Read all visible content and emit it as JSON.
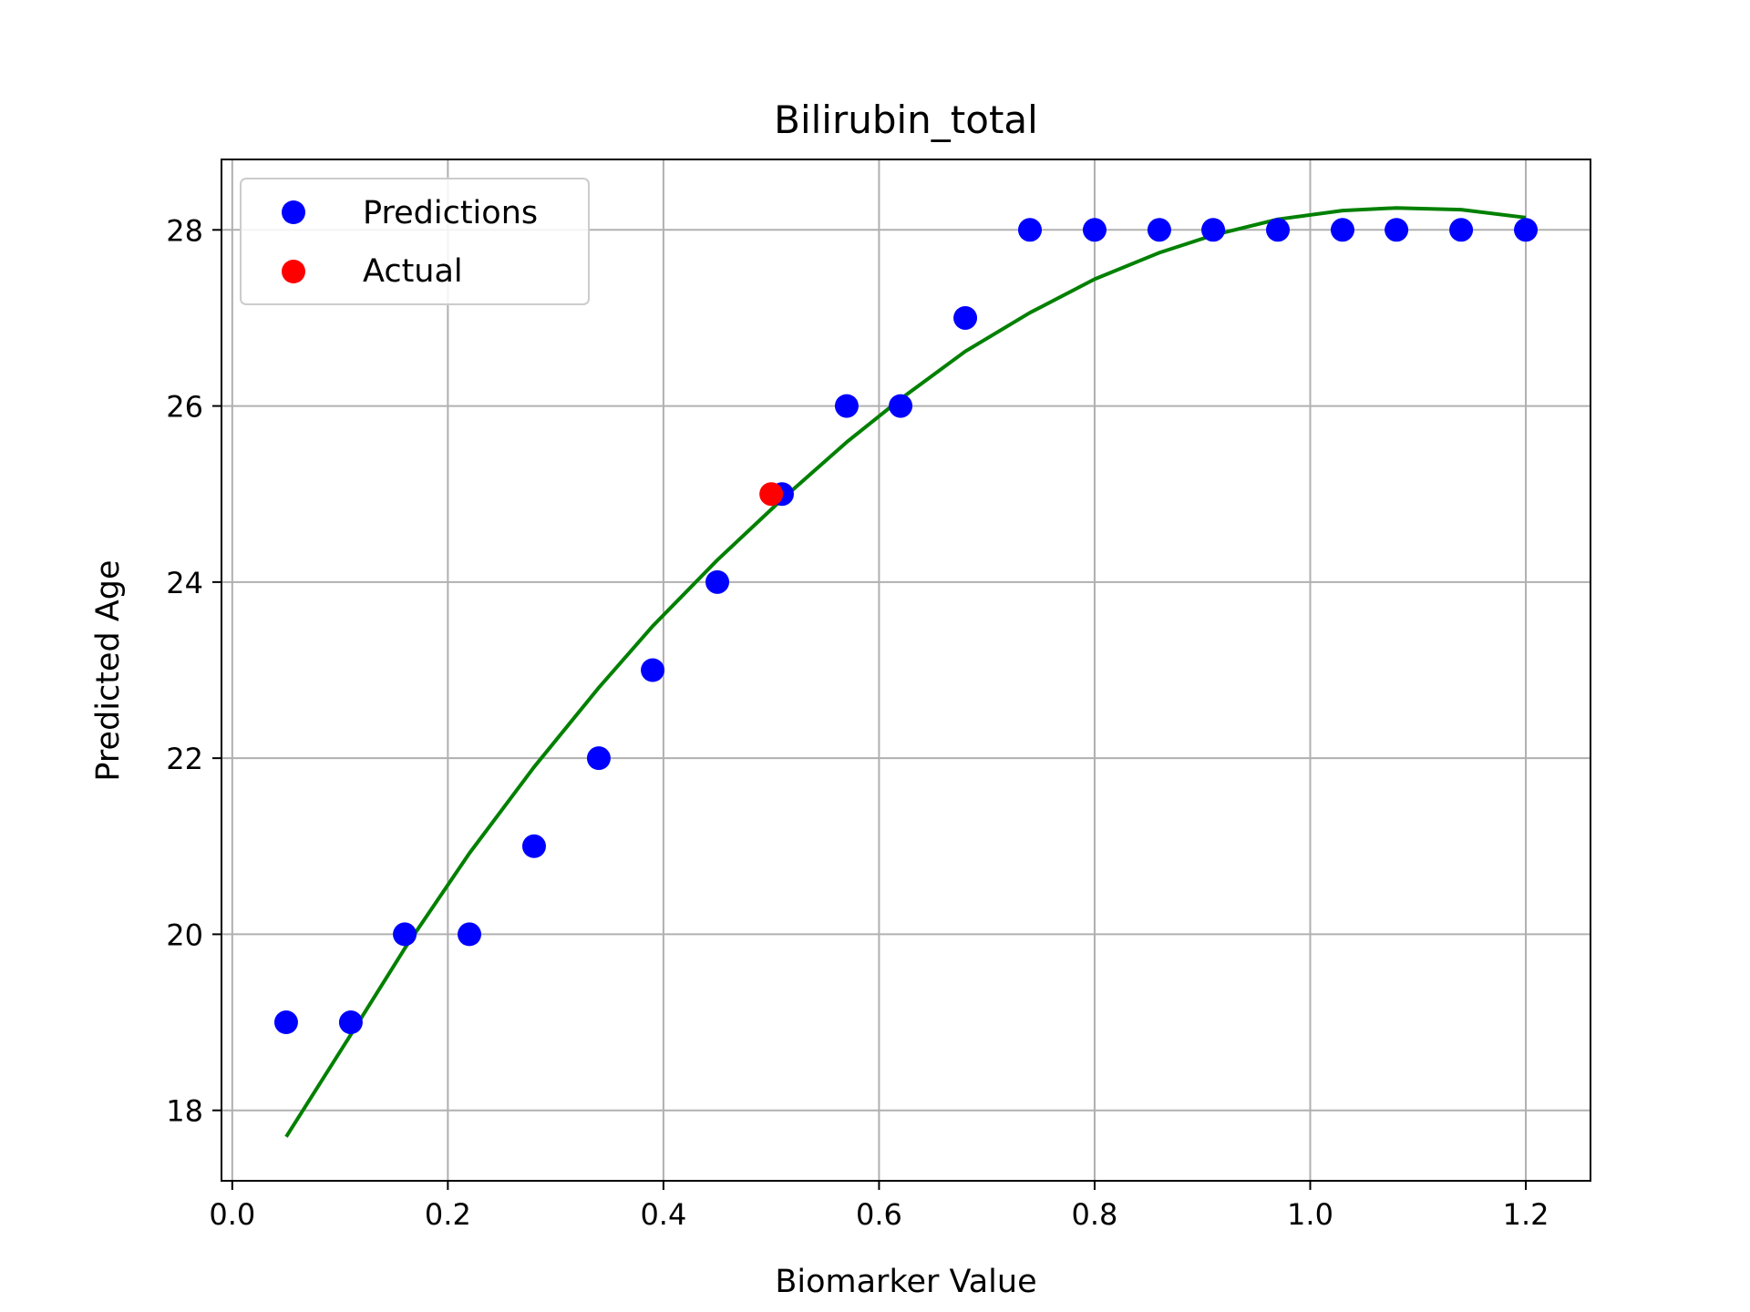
{
  "chart_data": {
    "type": "scatter",
    "title": "Bilirubin_total",
    "xlabel": "Biomarker Value",
    "ylabel": "Predicted Age",
    "xlim": [
      -0.01,
      1.26
    ],
    "ylim": [
      17.2,
      28.8
    ],
    "xticks": [
      0.0,
      0.2,
      0.4,
      0.6,
      0.8,
      1.0,
      1.2
    ],
    "xtick_labels": [
      "0.0",
      "0.2",
      "0.4",
      "0.6",
      "0.8",
      "1.0",
      "1.2"
    ],
    "yticks": [
      18,
      20,
      22,
      24,
      26,
      28
    ],
    "ytick_labels": [
      "18",
      "20",
      "22",
      "24",
      "26",
      "28"
    ],
    "grid": true,
    "legend_position": "top-left",
    "series": [
      {
        "name": "Predictions",
        "kind": "scatter",
        "color": "#0000ff",
        "x": [
          0.05,
          0.11,
          0.16,
          0.22,
          0.28,
          0.34,
          0.39,
          0.45,
          0.51,
          0.57,
          0.62,
          0.68,
          0.74,
          0.8,
          0.86,
          0.91,
          0.97,
          1.03,
          1.08,
          1.14,
          1.2
        ],
        "y": [
          19,
          19,
          20,
          20,
          21,
          22,
          23,
          24,
          25,
          26,
          26,
          27,
          28,
          28,
          28,
          28,
          28,
          28,
          28,
          28,
          28
        ]
      },
      {
        "name": "Actual",
        "kind": "scatter",
        "color": "#ff0000",
        "x": [
          0.5
        ],
        "y": [
          25
        ]
      },
      {
        "kind": "line",
        "color": "#008000",
        "x": [
          0.05,
          0.11,
          0.16,
          0.22,
          0.28,
          0.34,
          0.39,
          0.45,
          0.51,
          0.57,
          0.62,
          0.68,
          0.74,
          0.8,
          0.86,
          0.91,
          0.97,
          1.03,
          1.08,
          1.14,
          1.2
        ],
        "y": [
          17.7,
          18.86,
          19.84,
          20.92,
          21.9,
          22.8,
          23.5,
          24.25,
          24.94,
          25.59,
          26.08,
          26.62,
          27.06,
          27.44,
          27.74,
          27.94,
          28.12,
          28.22,
          28.25,
          28.23,
          28.14
        ]
      }
    ]
  }
}
